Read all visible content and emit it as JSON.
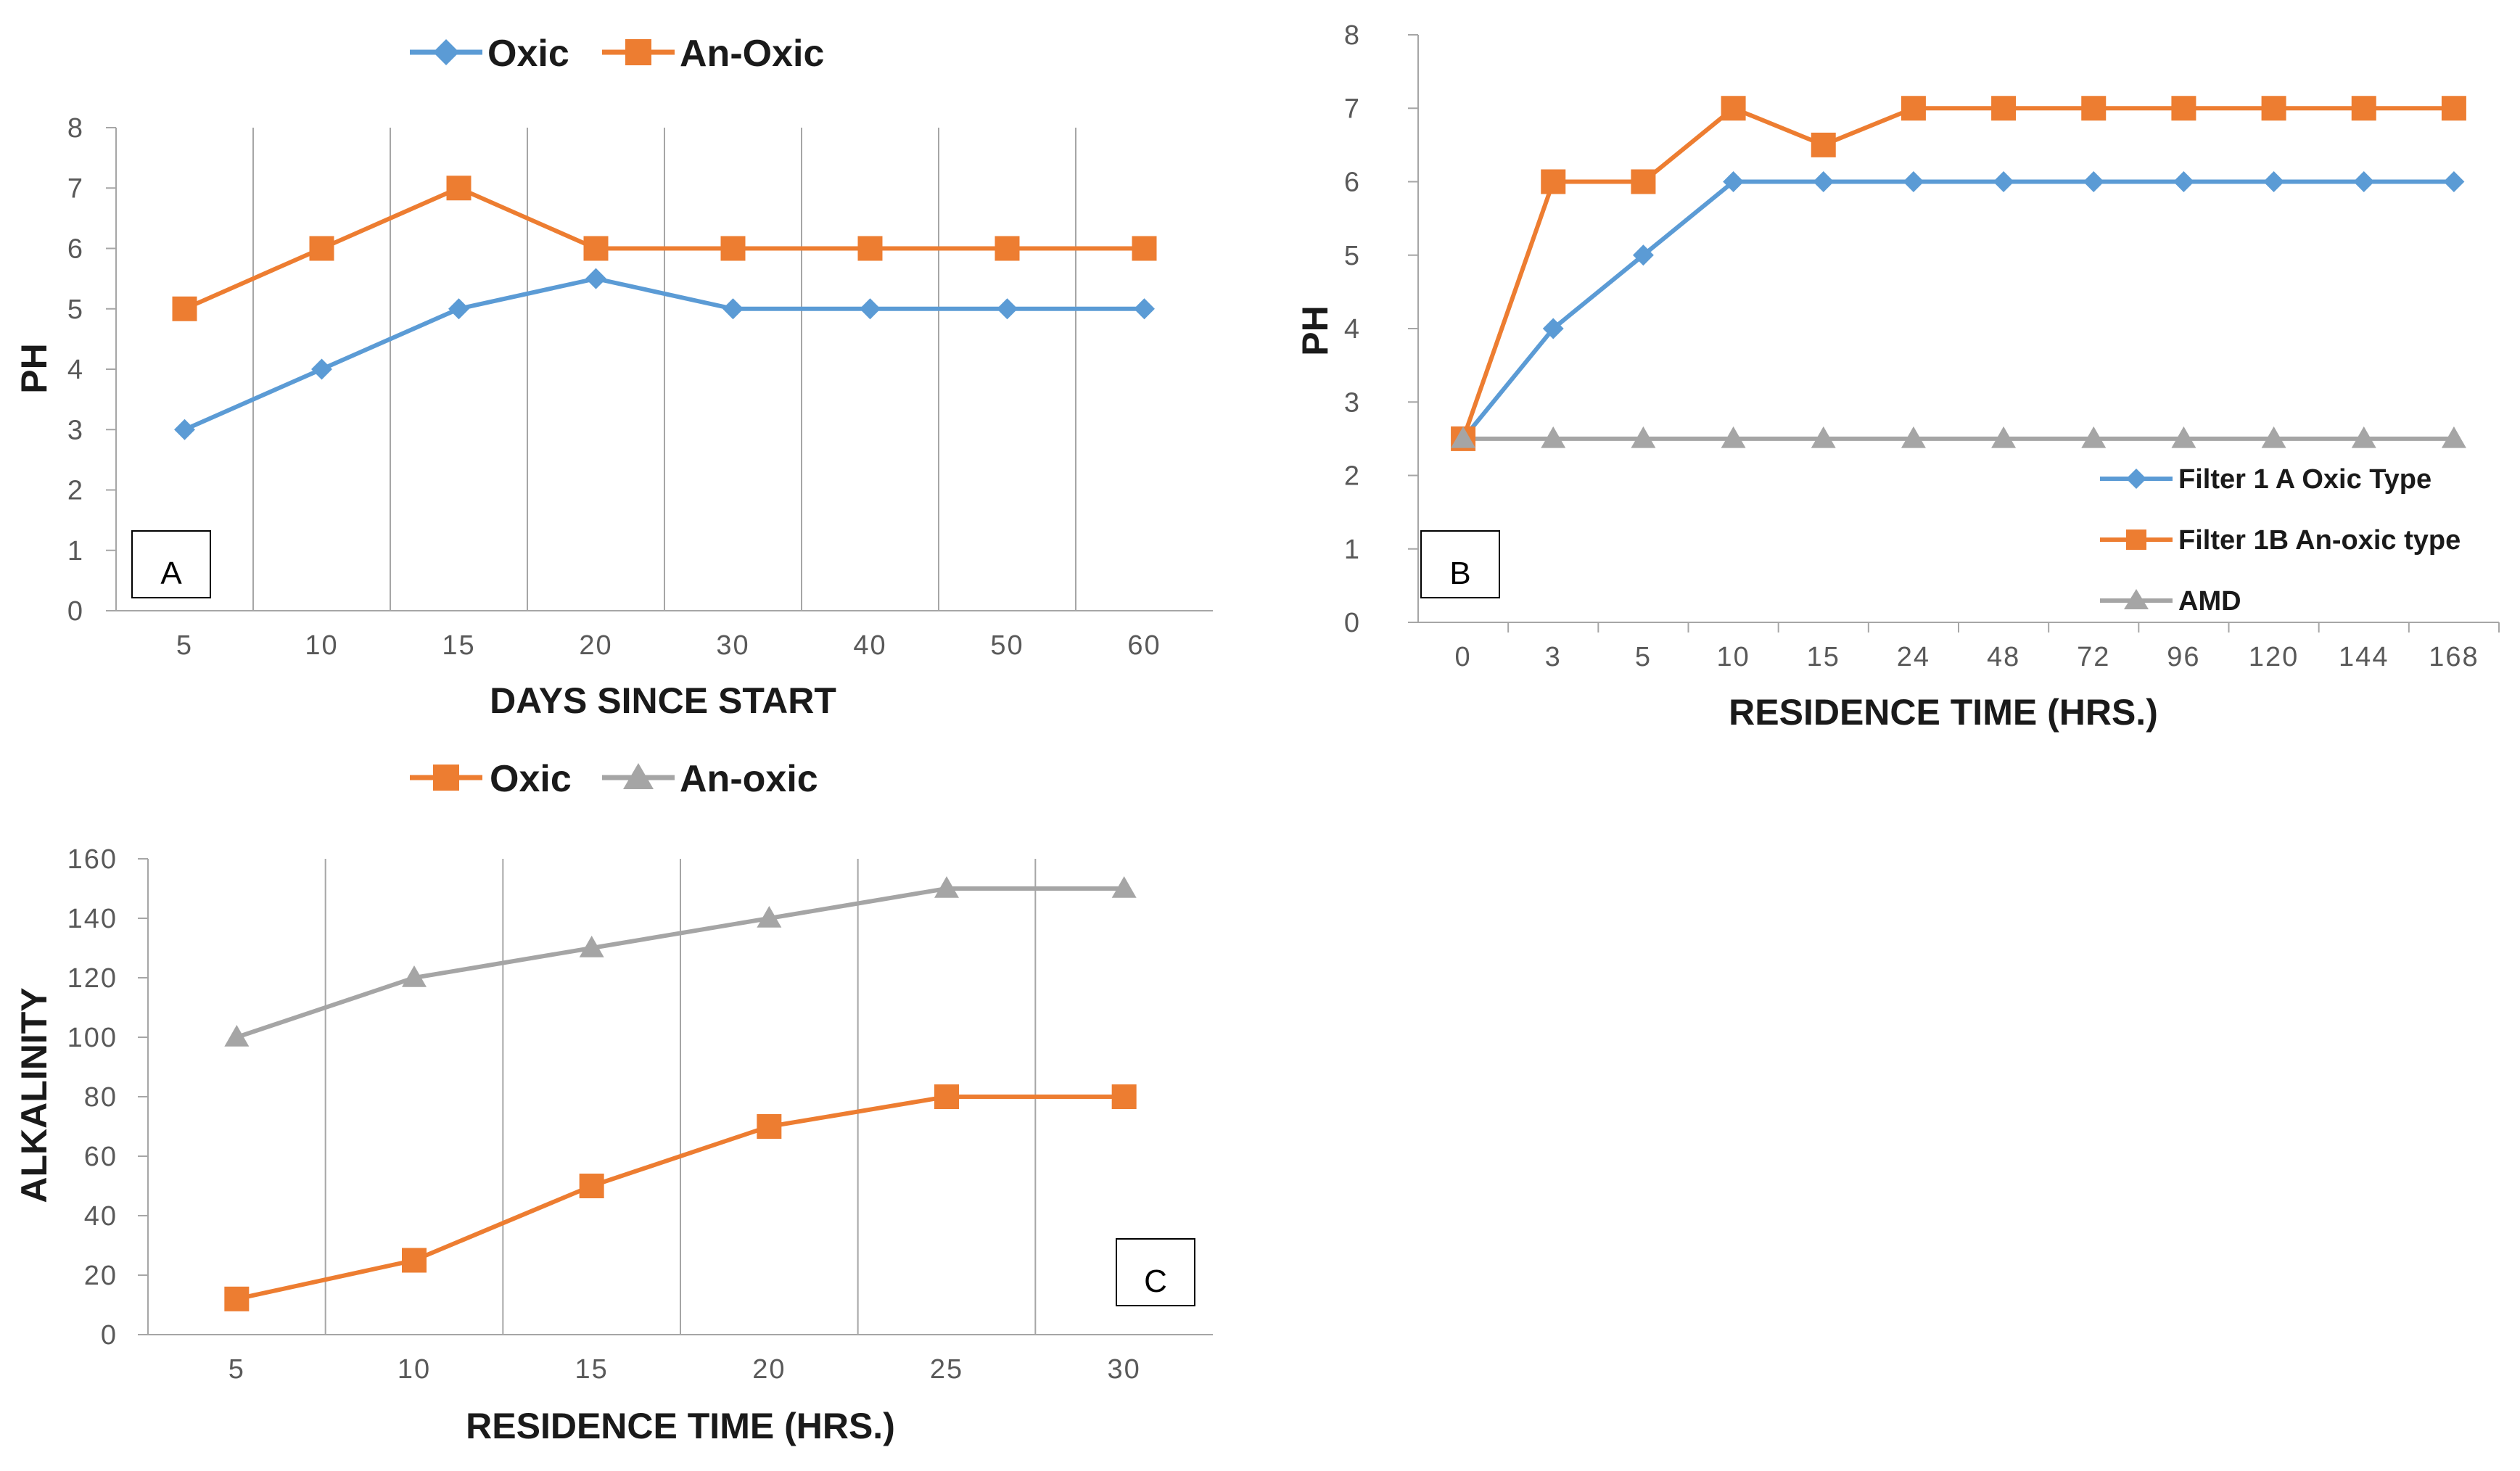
{
  "colors": {
    "blue": "#5B9BD5",
    "orange": "#ED7D31",
    "gray": "#A5A5A5",
    "grid": "#A6A6A6",
    "axis": "#A6A6A6"
  },
  "chart_data": [
    {
      "panel": "A",
      "type": "line",
      "categories": [
        "5",
        "10",
        "15",
        "20",
        "30",
        "40",
        "50",
        "60"
      ],
      "series": [
        {
          "name": "Oxic",
          "color": "#5B9BD5",
          "marker": "diamond",
          "values": [
            3,
            4,
            5,
            5.5,
            5,
            5,
            5,
            5
          ]
        },
        {
          "name": "An-Oxic",
          "color": "#ED7D31",
          "marker": "square",
          "values": [
            5,
            6,
            7,
            6,
            6,
            6,
            6,
            6
          ]
        }
      ],
      "title": "",
      "xlabel": "DAYS SINCE START",
      "ylabel": "PH",
      "ylim": [
        0,
        8
      ],
      "ystep": 1,
      "yticks": [
        "0",
        "1",
        "2",
        "3",
        "4",
        "5",
        "6",
        "7",
        "8"
      ],
      "grid": "vertical",
      "legend": "top"
    },
    {
      "panel": "B",
      "type": "line",
      "categories": [
        "0",
        "3",
        "5",
        "10",
        "15",
        "24",
        "48",
        "72",
        "96",
        "120",
        "144",
        "168"
      ],
      "series": [
        {
          "name": "Filter 1 A Oxic Type",
          "color": "#5B9BD5",
          "marker": "diamond",
          "values": [
            2.5,
            4,
            5,
            6,
            6,
            6,
            6,
            6,
            6,
            6,
            6,
            6
          ]
        },
        {
          "name": "Filter 1B An-oxic type",
          "color": "#ED7D31",
          "marker": "square",
          "values": [
            2.5,
            6,
            6,
            7,
            6.5,
            7,
            7,
            7,
            7,
            7,
            7,
            7
          ]
        },
        {
          "name": "AMD",
          "color": "#A5A5A5",
          "marker": "triangle",
          "values": [
            2.5,
            2.5,
            2.5,
            2.5,
            2.5,
            2.5,
            2.5,
            2.5,
            2.5,
            2.5,
            2.5,
            2.5
          ]
        }
      ],
      "title": "",
      "xlabel": "RESIDENCE TIME (HRS.)",
      "ylabel": "PH",
      "ylim": [
        0,
        8
      ],
      "ystep": 1,
      "yticks": [
        "0",
        "1",
        "2",
        "3",
        "4",
        "5",
        "6",
        "7",
        "8"
      ],
      "grid": "none",
      "legend": "bottom-right"
    },
    {
      "panel": "C",
      "type": "line",
      "categories": [
        "5",
        "10",
        "15",
        "20",
        "25",
        "30"
      ],
      "series": [
        {
          "name": "Oxic",
          "color": "#ED7D31",
          "marker": "square",
          "values": [
            12,
            25,
            50,
            70,
            80,
            80
          ]
        },
        {
          "name": "An-oxic",
          "color": "#A5A5A5",
          "marker": "triangle",
          "values": [
            100,
            120,
            130,
            140,
            150,
            150
          ]
        }
      ],
      "title": "",
      "xlabel": "RESIDENCE TIME (HRS.)",
      "ylabel": "ALKALINITY",
      "ylim": [
        0,
        160
      ],
      "ystep": 20,
      "yticks": [
        "0",
        "20",
        "40",
        "60",
        "80",
        "100",
        "120",
        "140",
        "160"
      ],
      "grid": "vertical",
      "legend": "top"
    }
  ]
}
